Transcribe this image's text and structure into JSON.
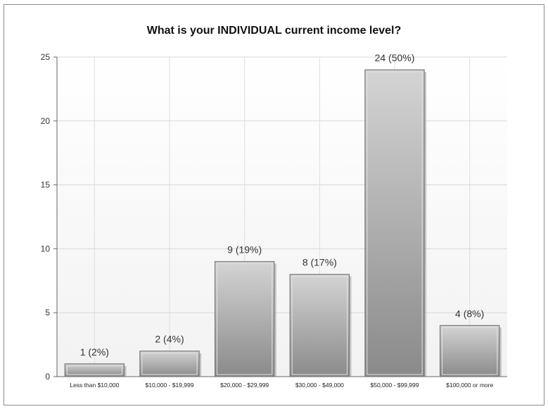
{
  "chart_data": {
    "type": "bar",
    "title": "What is your INDIVIDUAL current income level?",
    "xlabel": "",
    "ylabel": "",
    "categories": [
      "Less than $10,000",
      "$10,000 - $19,999",
      "$20,000 - $29,999",
      "$30,000 - $49,000",
      "$50,000 - $99,999",
      "$100,000 or more"
    ],
    "values": [
      1,
      2,
      9,
      8,
      24,
      4
    ],
    "data_labels": [
      "1 (2%)",
      "2 (4%)",
      "9 (19%)",
      "8 (17%)",
      "24 (50%)",
      "4 (8%)"
    ],
    "ylim": [
      0,
      25
    ],
    "yticks": [
      "0",
      "5",
      "10",
      "15",
      "20",
      "25"
    ],
    "grid": true,
    "bar_color": "#a8a8a8"
  }
}
